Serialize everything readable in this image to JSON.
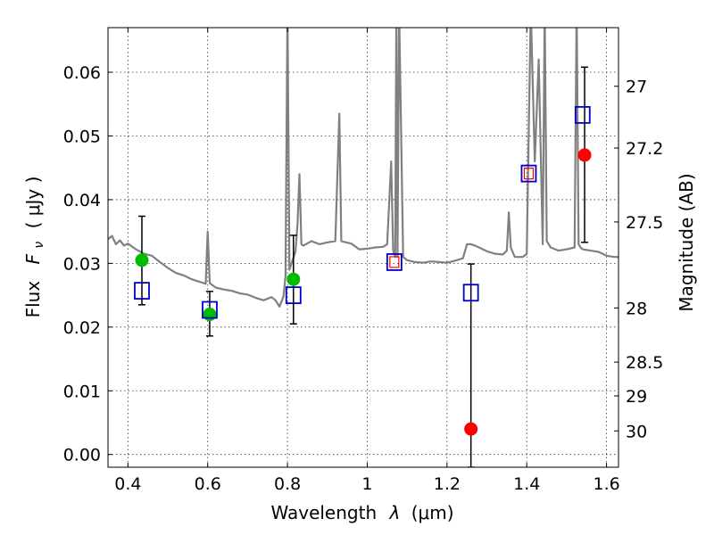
{
  "chart_data": {
    "type": "scatter",
    "title": "",
    "xlabel_text": "Wavelength",
    "xlabel_symbol": "λ",
    "xlabel_unit": "(μm)",
    "ylabel_left_text": "Flux",
    "ylabel_left_symbol": "F",
    "ylabel_left_subscript": "ν",
    "ylabel_left_unit": "( μJy )",
    "ylabel_right": "Magnitude (AB)",
    "xlim": [
      0.35,
      1.63
    ],
    "ylim": [
      -0.002,
      0.067
    ],
    "grid": true,
    "x_ticks": [
      0.4,
      0.6,
      0.8,
      1.0,
      1.2,
      1.4,
      1.6
    ],
    "x_tick_labels": [
      "0.4",
      "0.6",
      "0.8",
      "1",
      "1.2",
      "1.4",
      "1.6"
    ],
    "y_ticks": [
      0.0,
      0.01,
      0.02,
      0.03,
      0.04,
      0.05,
      0.06
    ],
    "y_tick_labels": [
      "0.00",
      "0.01",
      "0.02",
      "0.03",
      "0.04",
      "0.05",
      "0.06"
    ],
    "right_ticks": [
      {
        "label": "27",
        "flux": 0.0578
      },
      {
        "label": "27.2",
        "flux": 0.0481
      },
      {
        "label": "27.5",
        "flux": 0.0365
      },
      {
        "label": "28",
        "flux": 0.023
      },
      {
        "label": "28.5",
        "flux": 0.0145
      },
      {
        "label": "29",
        "flux": 0.0092
      },
      {
        "label": "30",
        "flux": 0.0037
      }
    ],
    "colors": {
      "model": "#808080",
      "green": "#00bb00",
      "red": "#ff0000",
      "blue": "#0000cc",
      "error": "#000000"
    },
    "series": [
      {
        "marker": "line",
        "color": "#808080",
        "x": [
          0.35,
          0.36,
          0.37,
          0.38,
          0.39,
          0.4,
          0.42,
          0.44,
          0.46,
          0.48,
          0.5,
          0.52,
          0.54,
          0.56,
          0.58,
          0.595,
          0.6,
          0.605,
          0.62,
          0.64,
          0.66,
          0.68,
          0.7,
          0.72,
          0.74,
          0.76,
          0.77,
          0.78,
          0.79,
          0.795,
          0.8,
          0.805,
          0.81,
          0.82,
          0.825,
          0.83,
          0.835,
          0.84,
          0.86,
          0.88,
          0.9,
          0.92,
          0.93,
          0.935,
          0.94,
          0.96,
          0.98,
          1.0,
          1.02,
          1.04,
          1.05,
          1.06,
          1.065,
          1.07,
          1.073,
          1.076,
          1.08,
          1.09,
          1.1,
          1.12,
          1.14,
          1.16,
          1.18,
          1.2,
          1.22,
          1.24,
          1.25,
          1.26,
          1.27,
          1.28,
          1.3,
          1.32,
          1.34,
          1.35,
          1.355,
          1.36,
          1.37,
          1.38,
          1.39,
          1.4,
          1.41,
          1.42,
          1.43,
          1.44,
          1.445,
          1.45,
          1.46,
          1.48,
          1.5,
          1.52,
          1.525,
          1.53,
          1.535,
          1.54,
          1.56,
          1.58,
          1.6,
          1.62,
          1.63
        ],
        "y": [
          0.0338,
          0.0343,
          0.033,
          0.0336,
          0.0328,
          0.0331,
          0.0322,
          0.0315,
          0.0312,
          0.0302,
          0.0293,
          0.0285,
          0.0281,
          0.0275,
          0.0271,
          0.0268,
          0.035,
          0.0269,
          0.0262,
          0.0259,
          0.0257,
          0.0253,
          0.0251,
          0.0246,
          0.0242,
          0.0247,
          0.0242,
          0.0232,
          0.0248,
          0.028,
          0.07,
          0.029,
          0.03,
          0.0318,
          0.036,
          0.044,
          0.033,
          0.0328,
          0.0335,
          0.033,
          0.0333,
          0.0335,
          0.0535,
          0.0335,
          0.0334,
          0.0331,
          0.0322,
          0.0323,
          0.0325,
          0.0326,
          0.033,
          0.046,
          0.032,
          0.031,
          0.07,
          0.031,
          0.07,
          0.031,
          0.0305,
          0.0302,
          0.0301,
          0.0303,
          0.0302,
          0.0301,
          0.0304,
          0.0308,
          0.033,
          0.033,
          0.0328,
          0.0325,
          0.0319,
          0.0315,
          0.0314,
          0.032,
          0.038,
          0.0325,
          0.031,
          0.031,
          0.031,
          0.0315,
          0.07,
          0.046,
          0.062,
          0.033,
          0.07,
          0.0335,
          0.0325,
          0.032,
          0.0322,
          0.0325,
          0.07,
          0.033,
          0.0325,
          0.0322,
          0.032,
          0.0318,
          0.0312,
          0.031,
          0.031
        ]
      },
      {
        "marker": "circle-green",
        "color": "#00bb00",
        "x": [
          0.435,
          0.605,
          0.815
        ],
        "y": [
          0.0305,
          0.022,
          0.0275
        ]
      },
      {
        "marker": "circle-red",
        "color": "#ff0000",
        "x": [
          1.26,
          1.545
        ],
        "y": [
          0.004,
          0.047
        ]
      },
      {
        "marker": "square-blue",
        "color": "#0000cc",
        "x": [
          0.435,
          0.605,
          0.815,
          1.068,
          1.26,
          1.405,
          1.54
        ],
        "y": [
          0.0257,
          0.0227,
          0.025,
          0.0302,
          0.0254,
          0.0441,
          0.0533
        ]
      },
      {
        "marker": "square-red-small",
        "color": "#ff0000",
        "x": [
          1.068,
          1.405
        ],
        "y": [
          0.0302,
          0.0441
        ]
      }
    ],
    "errorbars": [
      {
        "x": 0.435,
        "y_low": 0.0235,
        "y_high": 0.0374
      },
      {
        "x": 0.605,
        "y_low": 0.0186,
        "y_high": 0.0256
      },
      {
        "x": 0.815,
        "y_low": 0.0205,
        "y_high": 0.0344
      },
      {
        "x": 1.26,
        "y_low": -0.002,
        "y_high": 0.0299
      },
      {
        "x": 1.545,
        "y_low": 0.0333,
        "y_high": 0.0608
      }
    ]
  }
}
